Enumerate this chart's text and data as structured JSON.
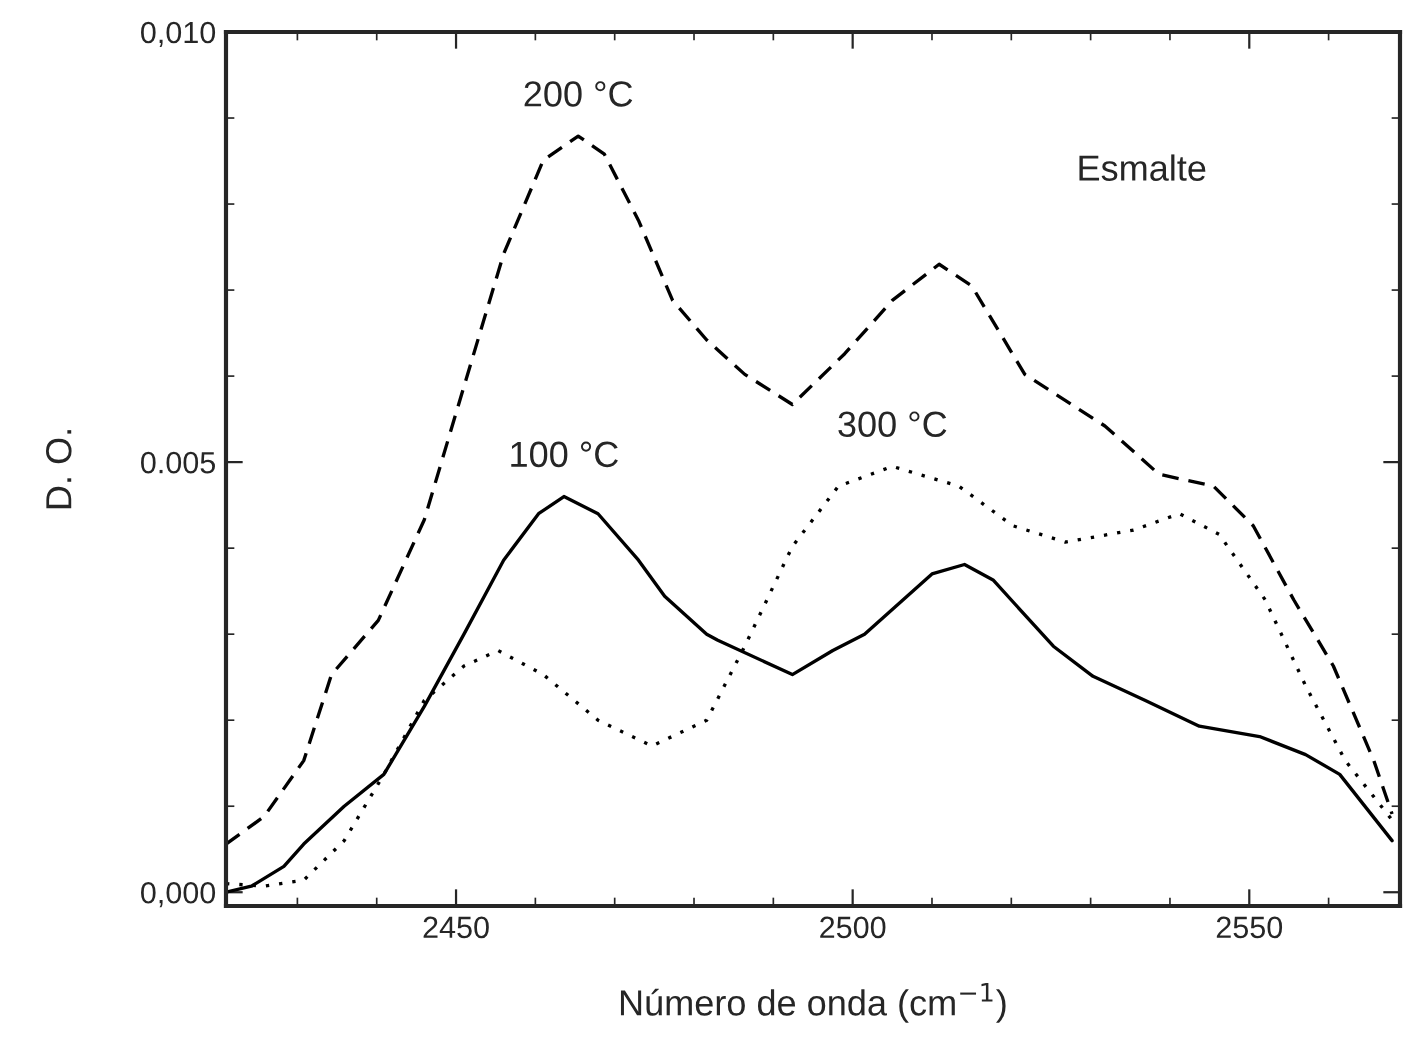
{
  "chart_data": {
    "type": "line",
    "xlabel": "Número de onda (cm$^{−1}$)",
    "ylabel": "D. O.",
    "xlim": [
      2421,
      2569
    ],
    "xticks": [
      2450,
      2500,
      2550
    ],
    "ylim": [
      -0.00016,
      0.01
    ],
    "yticks": [
      {
        "value": 0.0,
        "label": "0,000"
      },
      {
        "value": 0.005,
        "label": "0.005"
      },
      {
        "value": 0.01,
        "label": "0,010"
      }
    ],
    "grid": false,
    "legend": false,
    "marker": "none",
    "annotations": [
      "Esmalte"
    ],
    "series": [
      {
        "name": "200 °C",
        "color": "#000000",
        "line_style": "dashed",
        "x": [
          2421,
          2425.8,
          2430.8,
          2434.3,
          2440.2,
          2446,
          2451,
          2456,
          2461,
          2465.4,
          2468.7,
          2473,
          2477.3,
          2481.6,
          2486.4,
          2492.4,
          2499,
          2505,
          2510.9,
          2515,
          2521.7,
          2531.8,
          2538.6,
          2545.5,
          2550.5,
          2555.6,
          2560.6,
          2565.7,
          2568
        ],
        "values": [
          0.00056,
          0.00088,
          0.00153,
          0.00253,
          0.00316,
          0.00433,
          0.00588,
          0.00742,
          0.00851,
          0.00879,
          0.00858,
          0.00781,
          0.00688,
          0.00642,
          0.00602,
          0.00567,
          0.00626,
          0.00688,
          0.0073,
          0.00705,
          0.00602,
          0.00542,
          0.00486,
          0.00472,
          0.00426,
          0.0034,
          0.00263,
          0.00153,
          0.00091
        ]
      },
      {
        "name": "100 °C",
        "color": "#000000",
        "line_style": "solid",
        "x": [
          2421,
          2424.2,
          2428.3,
          2430.8,
          2435.9,
          2440.9,
          2446,
          2451,
          2456,
          2460.4,
          2463.6,
          2467.9,
          2473,
          2476.3,
          2481.6,
          2483,
          2492.4,
          2497.5,
          2501.5,
          2510,
          2514.1,
          2517.7,
          2525.3,
          2530.3,
          2536.9,
          2543.7,
          2551.3,
          2557.1,
          2561.4,
          2568
        ],
        "values": [
          0.0,
          7e-05,
          0.0003,
          0.00056,
          0.001,
          0.00137,
          0.00216,
          0.003,
          0.00386,
          0.0044,
          0.0046,
          0.0044,
          0.00386,
          0.00344,
          0.003,
          0.00293,
          0.00253,
          0.00281,
          0.003,
          0.0037,
          0.00381,
          0.00363,
          0.00286,
          0.00251,
          0.00223,
          0.00193,
          0.00181,
          0.0016,
          0.00137,
          0.0006
        ]
      },
      {
        "name": "300 °C",
        "color": "#000000",
        "line_style": "dotted",
        "x": [
          2421,
          2425.8,
          2430.8,
          2435.9,
          2440.9,
          2446,
          2451,
          2455.3,
          2461,
          2467.9,
          2474.7,
          2481.6,
          2486.4,
          2492.4,
          2498.2,
          2505,
          2513.4,
          2520.2,
          2526.8,
          2535.4,
          2541.2,
          2546.2,
          2552,
          2557.1,
          2562.1,
          2568
        ],
        "values": [
          0.0001,
          7e-05,
          0.00014,
          0.0006,
          0.00137,
          0.00223,
          0.00263,
          0.00281,
          0.00253,
          0.002,
          0.0017,
          0.002,
          0.00286,
          0.00402,
          0.00472,
          0.00495,
          0.00472,
          0.00426,
          0.00407,
          0.00421,
          0.0044,
          0.00416,
          0.0034,
          0.0024,
          0.00153,
          0.00084
        ]
      }
    ]
  }
}
